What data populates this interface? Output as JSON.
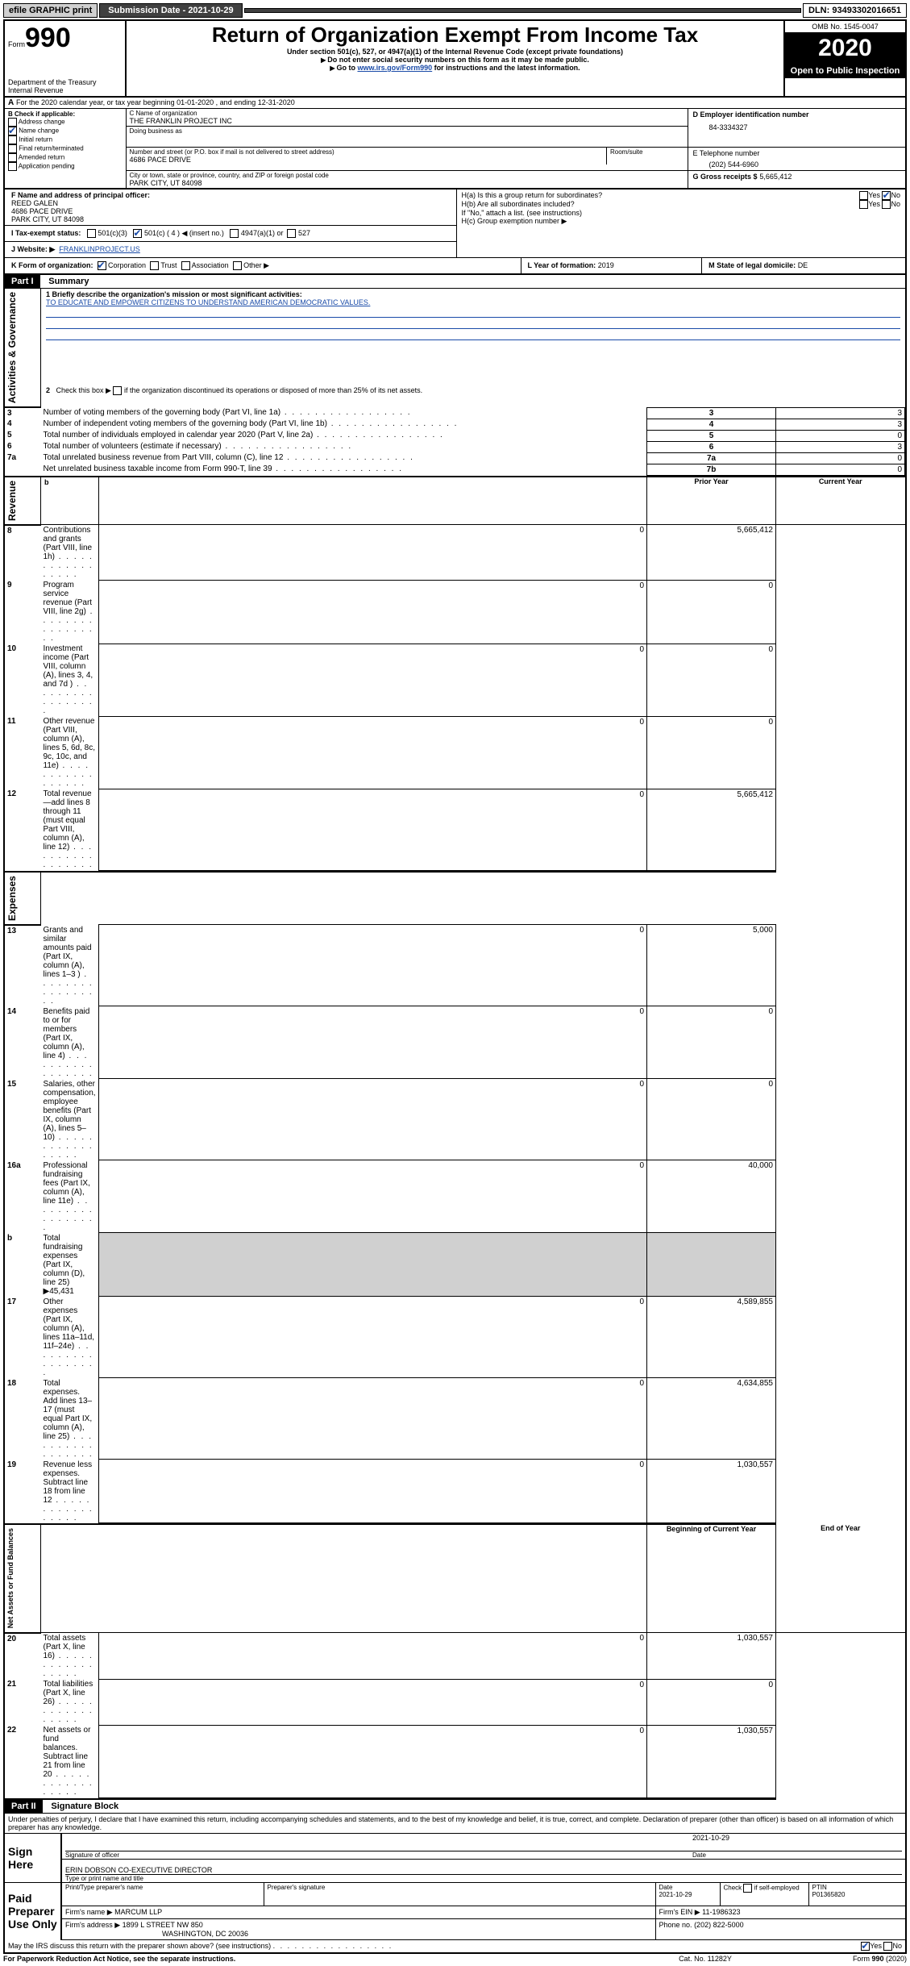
{
  "topbar": {
    "efile": "efile GRAPHIC print",
    "submission_label": "Submission Date - 2021-10-29",
    "dln": "DLN: 93493302016651"
  },
  "header": {
    "form_word": "Form",
    "form_num": "990",
    "dept": "Department of the Treasury",
    "irs": "Internal Revenue",
    "title": "Return of Organization Exempt From Income Tax",
    "subtitle": "Under section 501(c), 527, or 4947(a)(1) of the Internal Revenue Code (except private foundations)",
    "note1": "Do not enter social security numbers on this form as it may be made public.",
    "note2_pre": "Go to ",
    "note2_link": "www.irs.gov/Form990",
    "note2_post": " for instructions and the latest information.",
    "omb": "OMB No. 1545-0047",
    "year": "2020",
    "open": "Open to Public Inspection"
  },
  "sectionA": {
    "prefix": "A",
    "text": "For the 2020 calendar year, or tax year beginning 01-01-2020    , and ending 12-31-2020"
  },
  "sectionB": {
    "label": "B Check if applicable:",
    "items": [
      "Address change",
      "Name change",
      "Initial return",
      "Final return/terminated",
      "Amended return",
      "Application pending"
    ],
    "checked_index": 1
  },
  "sectionC": {
    "name_label": "C Name of organization",
    "org_name": "THE FRANKLIN PROJECT INC",
    "dba_label": "Doing business as",
    "street_label": "Number and street (or P.O. box if mail is not delivered to street address)",
    "room_label": "Room/suite",
    "street": "4686 PACE DRIVE",
    "city_label": "City or town, state or province, country, and ZIP or foreign postal code",
    "city": "PARK CITY, UT  84098"
  },
  "sectionD": {
    "label": "D Employer identification number",
    "value": "84-3334327"
  },
  "sectionE": {
    "label": "E Telephone number",
    "value": "(202) 544-6960"
  },
  "sectionG": {
    "label": "G Gross receipts $",
    "value": "5,665,412"
  },
  "sectionF": {
    "label": "F  Name and address of principal officer:",
    "name": "REED GALEN",
    "addr1": "4686 PACE DRIVE",
    "addr2": "PARK CITY, UT  84098"
  },
  "sectionH": {
    "a_label": "H(a)  Is this a group return for subordinates?",
    "b_label": "H(b)  Are all subordinates included?",
    "b_note": "If \"No,\" attach a list. (see instructions)",
    "c_label": "H(c)  Group exemption number ▶",
    "yes": "Yes",
    "no": "No"
  },
  "sectionI": {
    "label": "I    Tax-exempt status:",
    "opt1": "501(c)(3)",
    "opt2": "501(c) ( 4 ) ◀ (insert no.)",
    "opt3": "4947(a)(1) or",
    "opt4": "527"
  },
  "sectionJ": {
    "label": "J    Website: ▶",
    "value": "FRANKLINPROJECT.US"
  },
  "sectionK": {
    "label": "K Form of organization:",
    "opts": [
      "Corporation",
      "Trust",
      "Association",
      "Other ▶"
    ]
  },
  "sectionL": {
    "label": "L Year of formation:",
    "value": "2019"
  },
  "sectionM": {
    "label": "M State of legal domicile:",
    "value": "DE"
  },
  "part1": {
    "header": "Part I",
    "title": "Summary",
    "q1_label": "1   Briefly describe the organization's mission or most significant activities:",
    "q1_value": "TO EDUCATE AND EMPOWER CITIZENS TO UNDERSTAND AMERICAN DEMOCRATIC VALUES.",
    "q2": "2    Check this box ▶       if the organization discontinued its operations or disposed of more than 25% of its net assets.",
    "prior_year": "Prior Year",
    "current_year": "Current Year",
    "begin_year": "Beginning of Current Year",
    "end_year": "End of Year",
    "vert_labels": [
      "Activities & Governance",
      "Revenue",
      "Expenses",
      "Net Assets or Fund Balances"
    ],
    "governance_rows": [
      {
        "n": "3",
        "t": "Number of voting members of the governing body (Part VI, line 1a)",
        "box": "3",
        "val": "3"
      },
      {
        "n": "4",
        "t": "Number of independent voting members of the governing body (Part VI, line 1b)",
        "box": "4",
        "val": "3"
      },
      {
        "n": "5",
        "t": "Total number of individuals employed in calendar year 2020 (Part V, line 2a)",
        "box": "5",
        "val": "0"
      },
      {
        "n": "6",
        "t": "Total number of volunteers (estimate if necessary)",
        "box": "6",
        "val": "3"
      },
      {
        "n": "7a",
        "t": "Total unrelated business revenue from Part VIII, column (C), line 12",
        "box": "7a",
        "val": "0"
      },
      {
        "n": "",
        "t": "Net unrelated business taxable income from Form 990-T, line 39",
        "box": "7b",
        "val": "0"
      }
    ],
    "revenue_rows": [
      {
        "n": "8",
        "t": "Contributions and grants (Part VIII, line 1h)",
        "py": "0",
        "cy": "5,665,412"
      },
      {
        "n": "9",
        "t": "Program service revenue (Part VIII, line 2g)",
        "py": "0",
        "cy": "0"
      },
      {
        "n": "10",
        "t": "Investment income (Part VIII, column (A), lines 3, 4, and 7d )",
        "py": "0",
        "cy": "0"
      },
      {
        "n": "11",
        "t": "Other revenue (Part VIII, column (A), lines 5, 6d, 8c, 9c, 10c, and 11e)",
        "py": "0",
        "cy": "0"
      },
      {
        "n": "12",
        "t": "Total revenue—add lines 8 through 11 (must equal Part VIII, column (A), line 12)",
        "py": "0",
        "cy": "5,665,412"
      }
    ],
    "expense_rows": [
      {
        "n": "13",
        "t": "Grants and similar amounts paid (Part IX, column (A), lines 1–3 )",
        "py": "0",
        "cy": "5,000"
      },
      {
        "n": "14",
        "t": "Benefits paid to or for members (Part IX, column (A), line 4)",
        "py": "0",
        "cy": "0"
      },
      {
        "n": "15",
        "t": "Salaries, other compensation, employee benefits (Part IX, column (A), lines 5–10)",
        "py": "0",
        "cy": "0"
      },
      {
        "n": "16a",
        "t": "Professional fundraising fees (Part IX, column (A), line 11e)",
        "py": "0",
        "cy": "40,000"
      },
      {
        "n": "b",
        "t": "Total fundraising expenses (Part IX, column (D), line 25) ▶45,431",
        "py": "",
        "cy": ""
      },
      {
        "n": "17",
        "t": "Other expenses (Part IX, column (A), lines 11a–11d, 11f–24e)",
        "py": "0",
        "cy": "4,589,855"
      },
      {
        "n": "18",
        "t": "Total expenses. Add lines 13–17 (must equal Part IX, column (A), line 25)",
        "py": "0",
        "cy": "4,634,855"
      },
      {
        "n": "19",
        "t": "Revenue less expenses. Subtract line 18 from line 12",
        "py": "0",
        "cy": "1,030,557"
      }
    ],
    "net_rows": [
      {
        "n": "20",
        "t": "Total assets (Part X, line 16)",
        "py": "0",
        "cy": "1,030,557"
      },
      {
        "n": "21",
        "t": "Total liabilities (Part X, line 26)",
        "py": "0",
        "cy": "0"
      },
      {
        "n": "22",
        "t": "Net assets or fund balances. Subtract line 21 from line 20",
        "py": "0",
        "cy": "1,030,557"
      }
    ]
  },
  "part2": {
    "header": "Part II",
    "title": "Signature Block",
    "perjury": "Under penalties of perjury, I declare that I have examined this return, including accompanying schedules and statements, and to the best of my knowledge and belief, it is true, correct, and complete. Declaration of preparer (other than officer) is based on all information of which preparer has any knowledge.",
    "sign_here": "Sign Here",
    "sig_officer": "Signature of officer",
    "date_label": "Date",
    "date_val": "2021-10-29",
    "officer_name": "ERIN DOBSON  CO-EXECUTIVE DIRECTOR",
    "type_name": "Type or print name and title",
    "paid_prep": "Paid Preparer Use Only",
    "col1": "Print/Type preparer's name",
    "col2": "Preparer's signature",
    "col3": "Date",
    "col3_val": "2021-10-29",
    "col4_label": "Check        if self-employed",
    "col5_label": "PTIN",
    "col5_val": "P01365820",
    "firm_name_label": "Firm's name     ▶",
    "firm_name": "MARCUM LLP",
    "firm_ein_label": "Firm's EIN ▶",
    "firm_ein": "11-1986323",
    "firm_addr_label": "Firm's address ▶",
    "firm_addr1": "1899 L STREET NW 850",
    "firm_addr2": "WASHINGTON, DC  20036",
    "phone_label": "Phone no.",
    "phone": "(202) 822-5000",
    "discuss": "May the IRS discuss this return with the preparer shown above? (see instructions)"
  },
  "footer": {
    "paperwork": "For Paperwork Reduction Act Notice, see the separate instructions.",
    "cat": "Cat. No. 11282Y",
    "form": "Form 990 (2020)"
  }
}
